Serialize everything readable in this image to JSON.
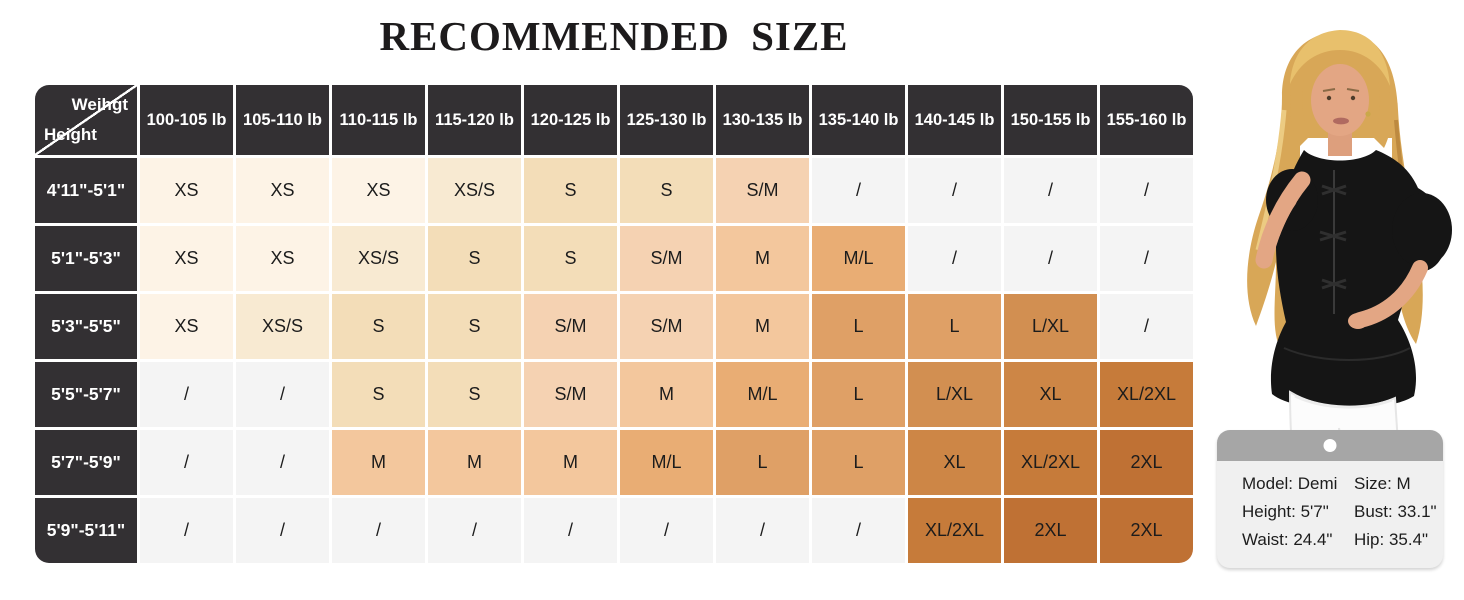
{
  "chart_data": {
    "type": "table",
    "title": "RECOMMENDED SIZE",
    "corner": {
      "weight_label": "Weihgt",
      "height_label": "Height"
    },
    "columns": [
      "100-105 lb",
      "105-110 lb",
      "110-115 lb",
      "115-120 lb",
      "120-125 lb",
      "125-130 lb",
      "130-135 lb",
      "135-140 lb",
      "140-145 lb",
      "150-155 lb",
      "155-160 lb"
    ],
    "rows": [
      {
        "height": "4'11\"-5'1\"",
        "sizes": [
          "XS",
          "XS",
          "XS",
          "XS/S",
          "S",
          "S",
          "S/M",
          "/",
          "/",
          "/",
          "/"
        ]
      },
      {
        "height": "5'1\"-5'3\"",
        "sizes": [
          "XS",
          "XS",
          "XS/S",
          "S",
          "S",
          "S/M",
          "M",
          "M/L",
          "/",
          "/",
          "/"
        ]
      },
      {
        "height": "5'3\"-5'5\"",
        "sizes": [
          "XS",
          "XS/S",
          "S",
          "S",
          "S/M",
          "S/M",
          "M",
          "L",
          "L",
          "L/XL",
          "/"
        ]
      },
      {
        "height": "5'5\"-5'7\"",
        "sizes": [
          "/",
          "/",
          "S",
          "S",
          "S/M",
          "M",
          "M/L",
          "L",
          "L/XL",
          "XL",
          "XL/2XL"
        ]
      },
      {
        "height": "5'7\"-5'9\"",
        "sizes": [
          "/",
          "/",
          "M",
          "M",
          "M",
          "M/L",
          "L",
          "L",
          "XL",
          "XL/2XL",
          "2XL"
        ]
      },
      {
        "height": "5'9\"-5'11\"",
        "sizes": [
          "/",
          "/",
          "/",
          "/",
          "/",
          "/",
          "/",
          "/",
          "XL/2XL",
          "2XL",
          "2XL"
        ]
      }
    ],
    "empty_marker": "/",
    "size_colors": {
      "XS": "#fdf3e6",
      "XS/S": "#f8ead2",
      "S": "#f3ddb8",
      "S/M": "#f5d2b2",
      "M": "#f3c79d",
      "M/L": "#e9ad74",
      "L": "#dfa066",
      "L/XL": "#d28f51",
      "XL": "#cd8646",
      "XL/2XL": "#c67b3a",
      "2XL": "#bf7134",
      "/": "#f4f4f4"
    }
  },
  "colors": {
    "header_bg": "#333033",
    "grid_line": "#ffffff",
    "title_color": "#1d1b1c",
    "card_band": "#a6a6a6",
    "card_body": "#f0f0f0"
  },
  "model_card": {
    "fields": [
      [
        "Model: Demi",
        "Size: M"
      ],
      [
        "Height: 5'7\"",
        "Bust: 33.1\""
      ],
      [
        "Waist: 24.4\"",
        "Hip: 35.4\""
      ]
    ]
  }
}
